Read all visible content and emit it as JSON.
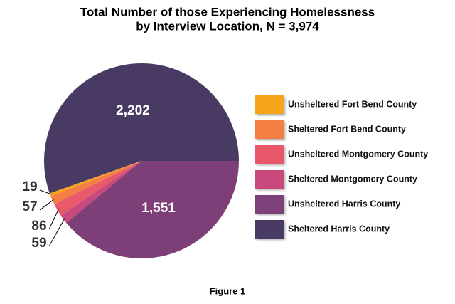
{
  "chart_data": {
    "type": "pie",
    "title": [
      "Total Number of those Experiencing Homelessness",
      "by Interview Location, N = 3,974"
    ],
    "caption": "Figure 1",
    "categories": [
      "Unsheltered Fort Bend County",
      "Sheltered Fort Bend County",
      "Unsheltered Montgomery County",
      "Sheltered Montgomery County",
      "Unsheltered Harris County",
      "Sheltered Harris County"
    ],
    "values": [
      19,
      57,
      86,
      59,
      1551,
      2202
    ],
    "value_labels": [
      "19",
      "57",
      "86",
      "59",
      "1,551",
      "2,202"
    ],
    "colors": [
      "#f7a51c",
      "#f47f45",
      "#e8596a",
      "#c84a7c",
      "#7e3f78",
      "#493a63"
    ],
    "legend": "right"
  }
}
